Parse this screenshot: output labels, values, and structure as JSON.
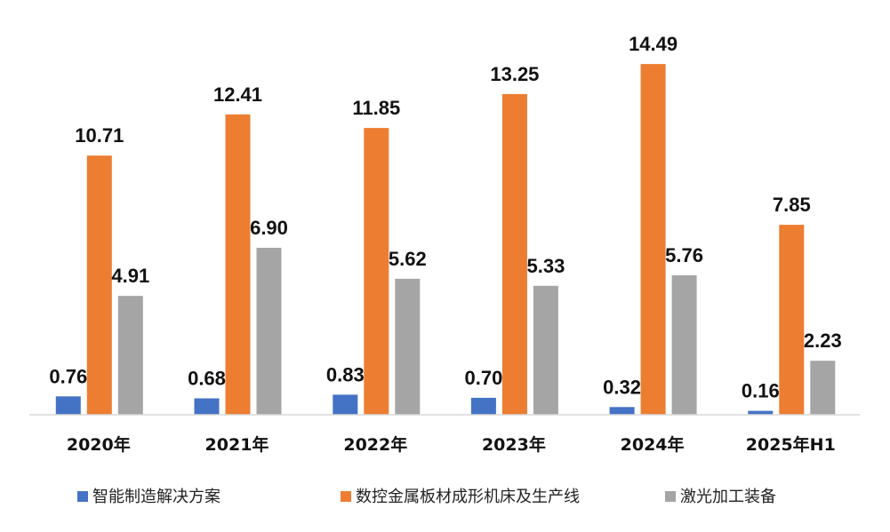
{
  "chart_data": {
    "type": "bar",
    "categories": [
      "2020年",
      "2021年",
      "2022年",
      "2023年",
      "2024年",
      "2025年H1"
    ],
    "series": [
      {
        "name": "智能制造解决方案",
        "color": "#4472C4",
        "values": [
          0.76,
          0.68,
          0.83,
          0.7,
          0.32,
          0.16
        ],
        "labels": [
          "0.76",
          "0.68",
          "0.83",
          "0.70",
          "0.32",
          "0.16"
        ]
      },
      {
        "name": "数控金属板材成形机床及生产线",
        "color": "#ED7D31",
        "values": [
          10.71,
          12.41,
          11.85,
          13.25,
          14.49,
          7.85
        ],
        "labels": [
          "10.71",
          "12.41",
          "11.85",
          "13.25",
          "14.49",
          "7.85"
        ]
      },
      {
        "name": "激光加工装备",
        "color": "#A5A5A5",
        "values": [
          4.91,
          6.9,
          5.62,
          5.33,
          5.76,
          2.23
        ],
        "labels": [
          "4.91",
          "6.90",
          "5.62",
          "5.33",
          "5.76",
          "2.23"
        ]
      }
    ],
    "title": "",
    "xlabel": "",
    "ylabel": "",
    "ylim": [
      0,
      16
    ],
    "grid": false,
    "legend_position": "bottom"
  }
}
